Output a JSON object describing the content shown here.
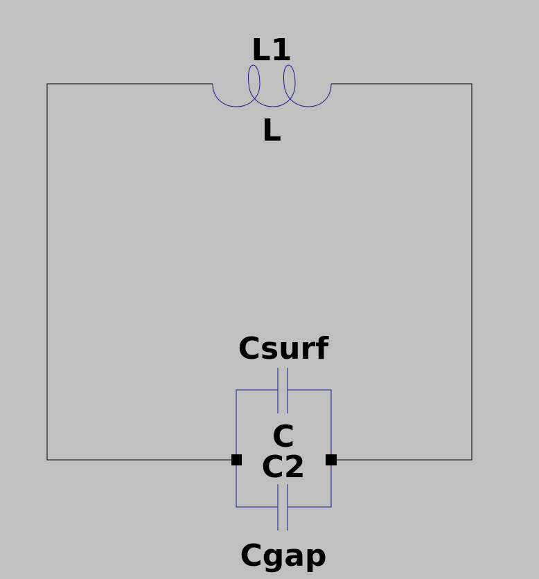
{
  "canvas": {
    "background": "#c0c0c0",
    "wire_color": "#000000",
    "component_color": "#1a1a8a"
  },
  "components": {
    "inductor": {
      "name": "L1",
      "value": "L"
    },
    "capacitor_top": {
      "name": "Csurf"
    },
    "capacitor_bottom": {
      "name": "Cgap"
    },
    "capacitor_block": {
      "value": "C",
      "name": "C2"
    }
  }
}
